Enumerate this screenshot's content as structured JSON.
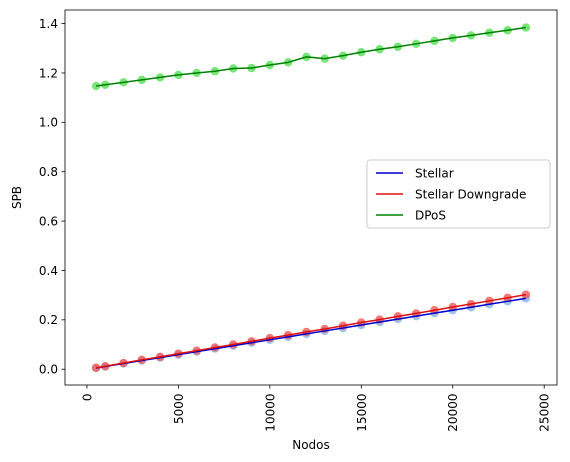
{
  "chart_data": {
    "type": "line",
    "title": "",
    "xlabel": "Nodos",
    "ylabel": "SPB",
    "xlim": [
      -1200,
      25700
    ],
    "ylim": [
      -0.064,
      1.455
    ],
    "xticks": [
      0,
      5000,
      10000,
      15000,
      20000,
      25000
    ],
    "yticks": [
      0.0,
      0.2,
      0.4,
      0.6,
      0.8,
      1.0,
      1.2,
      1.4
    ],
    "xtick_labels": [
      "0",
      "5000",
      "10000",
      "15000",
      "20000",
      "25000"
    ],
    "ytick_labels": [
      "0.0",
      "0.2",
      "0.4",
      "0.6",
      "0.8",
      "1.0",
      "1.2",
      "1.4"
    ],
    "grid": false,
    "legend_position": "right",
    "x": [
      500,
      1000,
      2000,
      3000,
      4000,
      5000,
      6000,
      7000,
      8000,
      9000,
      10000,
      11000,
      12000,
      13000,
      14000,
      15000,
      16000,
      17000,
      18000,
      19000,
      20000,
      21000,
      22000,
      23000,
      24000
    ],
    "series": [
      {
        "name": "Stellar",
        "line_color": "#0000cc",
        "point_color": "#8fb8e8",
        "values": [
          0.005,
          0.011,
          0.023,
          0.035,
          0.047,
          0.059,
          0.071,
          0.083,
          0.095,
          0.107,
          0.119,
          0.131,
          0.143,
          0.155,
          0.167,
          0.179,
          0.191,
          0.203,
          0.215,
          0.227,
          0.239,
          0.251,
          0.263,
          0.275,
          0.287
        ]
      },
      {
        "name": "Stellar Downgrade",
        "line_color": "#e01010",
        "point_color": "#f06060",
        "values": [
          0.006,
          0.012,
          0.025,
          0.038,
          0.05,
          0.063,
          0.075,
          0.088,
          0.1,
          0.113,
          0.126,
          0.138,
          0.151,
          0.163,
          0.176,
          0.189,
          0.201,
          0.214,
          0.226,
          0.239,
          0.252,
          0.264,
          0.277,
          0.289,
          0.302
        ]
      },
      {
        "name": "DPoS",
        "line_color": "#008000",
        "point_color": "#5ee05e",
        "values": [
          1.147,
          1.152,
          1.162,
          1.172,
          1.182,
          1.192,
          1.2,
          1.207,
          1.218,
          1.22,
          1.232,
          1.243,
          1.265,
          1.258,
          1.27,
          1.284,
          1.296,
          1.306,
          1.318,
          1.33,
          1.342,
          1.352,
          1.363,
          1.373,
          1.384
        ]
      }
    ]
  }
}
